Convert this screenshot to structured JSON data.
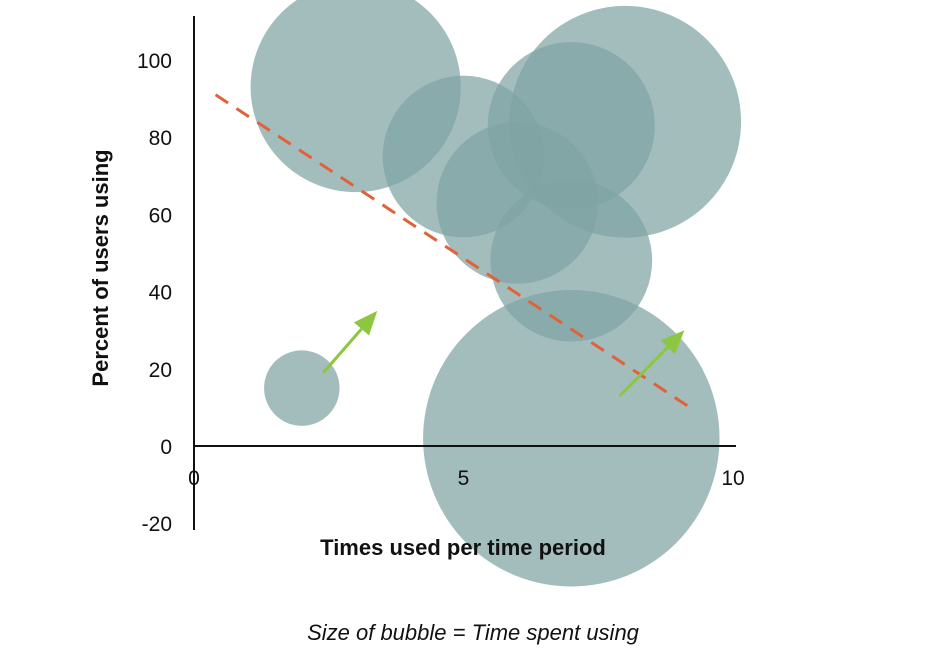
{
  "chart_data": {
    "type": "scatter",
    "subtype": "bubble",
    "title": "",
    "xlabel": "Times used per time period",
    "ylabel": "Percent of users using",
    "xlim": [
      0,
      10
    ],
    "ylim": [
      -20,
      110
    ],
    "x_ticks": [
      0,
      5,
      10
    ],
    "y_ticks": [
      -20,
      0,
      20,
      40,
      60,
      80,
      100
    ],
    "grid": false,
    "bubbles": [
      {
        "x": 3.0,
        "y": 93,
        "size": 3.9
      },
      {
        "x": 5.0,
        "y": 75,
        "size": 3.0
      },
      {
        "x": 6.0,
        "y": 63,
        "size": 3.0
      },
      {
        "x": 7.0,
        "y": 83,
        "size": 3.1
      },
      {
        "x": 8.0,
        "y": 84,
        "size": 4.3
      },
      {
        "x": 7.0,
        "y": 48,
        "size": 3.0
      },
      {
        "x": 7.0,
        "y": 2,
        "size": 5.5
      },
      {
        "x": 2.0,
        "y": 15,
        "size": 1.4
      }
    ],
    "trend_line": {
      "x": [
        0.4,
        9.2
      ],
      "y": [
        91,
        10
      ],
      "style": "dashed",
      "color": "#e0623a"
    },
    "arrows": [
      {
        "from": [
          2.4,
          19
        ],
        "to": [
          3.4,
          35
        ],
        "color": "#8dc63f"
      },
      {
        "from": [
          7.9,
          13
        ],
        "to": [
          9.1,
          30
        ],
        "color": "#8dc63f"
      }
    ],
    "bubble_color": "#7fa3a4"
  },
  "caption": "Size of bubble = Time spent using"
}
